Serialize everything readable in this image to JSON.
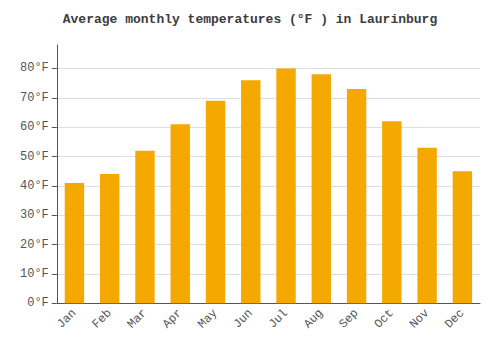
{
  "chart_data": {
    "type": "bar",
    "title": "Average monthly temperatures (°F ) in Laurinburg",
    "categories": [
      "Jan",
      "Feb",
      "Mar",
      "Apr",
      "May",
      "Jun",
      "Jul",
      "Aug",
      "Sep",
      "Oct",
      "Nov",
      "Dec"
    ],
    "values": [
      41,
      44,
      52,
      61,
      69,
      76,
      80,
      78,
      73,
      62,
      53,
      45
    ],
    "color": "#F5A800",
    "ylim": [
      0,
      88
    ],
    "yticks": [
      {
        "value": 0,
        "label": "0°F"
      },
      {
        "value": 10,
        "label": "10°F"
      },
      {
        "value": 20,
        "label": "20°F"
      },
      {
        "value": 30,
        "label": "30°F"
      },
      {
        "value": 40,
        "label": "40°F"
      },
      {
        "value": 50,
        "label": "50°F"
      },
      {
        "value": 60,
        "label": "60°F"
      },
      {
        "value": 70,
        "label": "70°F"
      },
      {
        "value": 80,
        "label": "80°F"
      }
    ],
    "grid": true
  }
}
